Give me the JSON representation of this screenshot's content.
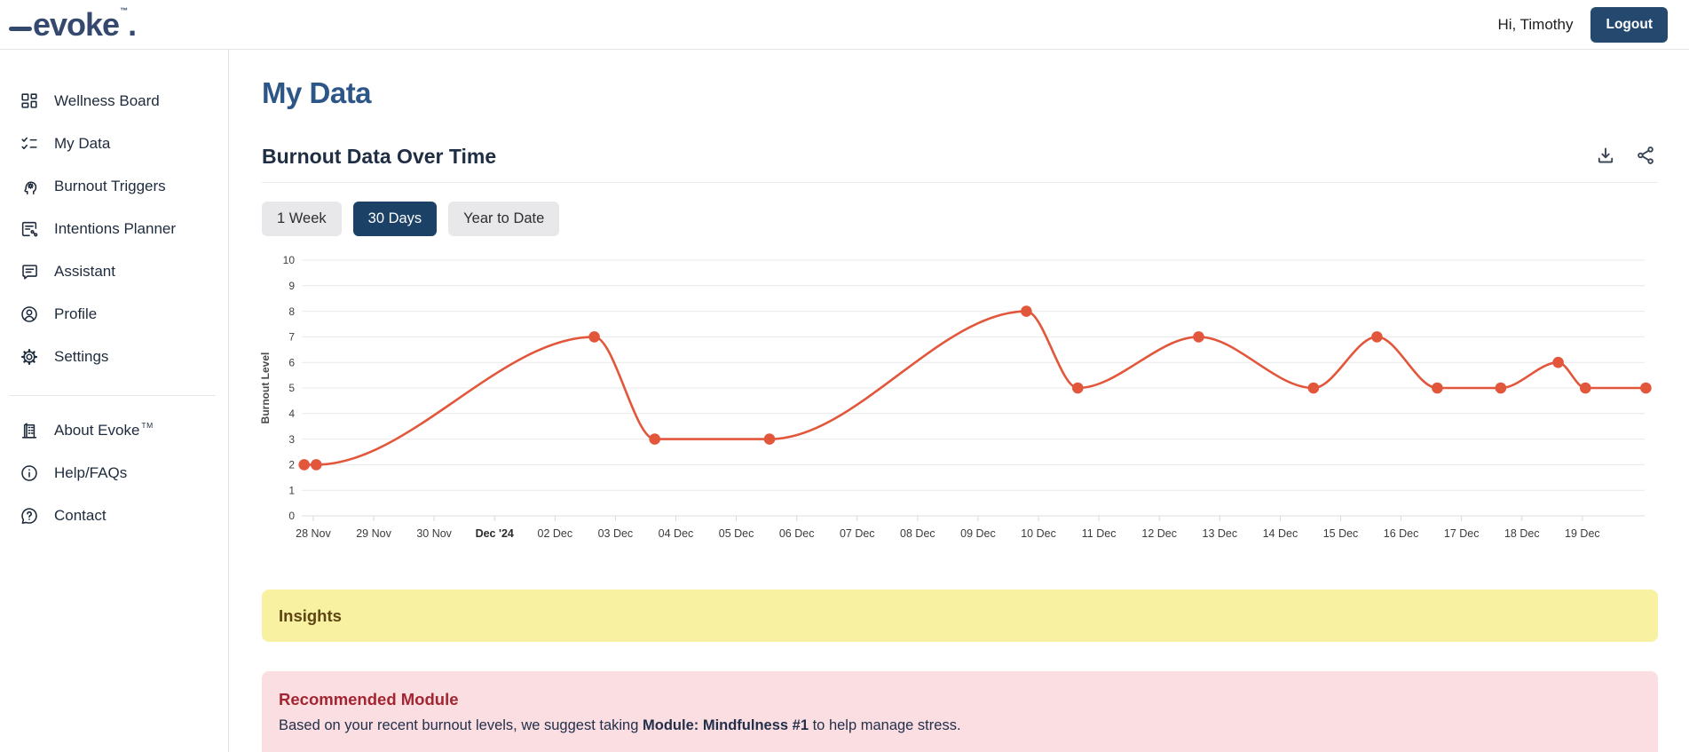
{
  "header": {
    "logo_text": "evoke",
    "logo_tm": "™",
    "logo_period": ".",
    "greeting": "Hi, Timothy",
    "logout_label": "Logout"
  },
  "sidebar": {
    "primary_items": [
      {
        "icon": "wellness-board",
        "label": "Wellness Board"
      },
      {
        "icon": "my-data",
        "label": "My Data"
      },
      {
        "icon": "burnout-triggers",
        "label": "Burnout Triggers"
      },
      {
        "icon": "intentions-planner",
        "label": "Intentions Planner"
      },
      {
        "icon": "assistant",
        "label": "Assistant"
      },
      {
        "icon": "profile",
        "label": "Profile"
      },
      {
        "icon": "settings",
        "label": "Settings"
      }
    ],
    "secondary_items": [
      {
        "icon": "about-evoke",
        "label": "About Evoke",
        "sup": "TM"
      },
      {
        "icon": "help-faqs",
        "label": "Help/FAQs"
      },
      {
        "icon": "contact",
        "label": "Contact"
      }
    ]
  },
  "main": {
    "page_title": "My Data",
    "section_title": "Burnout Data Over Time",
    "range_buttons": [
      {
        "label": "1 Week",
        "active": false
      },
      {
        "label": "30 Days",
        "active": true
      },
      {
        "label": "Year to Date",
        "active": false
      }
    ],
    "insights": {
      "title": "Insights"
    },
    "recommendation": {
      "title": "Recommended Module",
      "text_before": "Based on your recent burnout levels, we suggest taking ",
      "module_name": "Module: Mindfulness #1",
      "text_after": " to help manage stress."
    }
  },
  "chart_data": {
    "type": "line",
    "title": "Burnout Data Over Time",
    "xlabel": "",
    "ylabel": "Burnout Level",
    "ylim": [
      0,
      10
    ],
    "y_ticks": [
      0,
      1,
      2,
      3,
      4,
      5,
      6,
      7,
      8,
      9,
      10
    ],
    "categories": [
      "28 Nov",
      "29 Nov",
      "30 Nov",
      "Dec '24",
      "02 Dec",
      "03 Dec",
      "04 Dec",
      "05 Dec",
      "06 Dec",
      "07 Dec",
      "08 Dec",
      "09 Dec",
      "10 Dec",
      "11 Dec",
      "12 Dec",
      "13 Dec",
      "14 Dec",
      "15 Dec",
      "16 Dec",
      "17 Dec",
      "18 Dec",
      "19 Dec"
    ],
    "bold_category": "Dec '24",
    "x_unit": "days since 28 Nov",
    "x_domain": [
      -0.19,
      22.03
    ],
    "grid": true,
    "legend": false,
    "line_color": "#E2573C",
    "points": [
      {
        "x": -0.15,
        "y": 2
      },
      {
        "x": 0.05,
        "y": 2
      },
      {
        "x": 4.65,
        "y": 7
      },
      {
        "x": 5.65,
        "y": 3
      },
      {
        "x": 7.55,
        "y": 3
      },
      {
        "x": 11.8,
        "y": 8
      },
      {
        "x": 12.65,
        "y": 5
      },
      {
        "x": 14.65,
        "y": 7
      },
      {
        "x": 16.55,
        "y": 5
      },
      {
        "x": 17.6,
        "y": 7
      },
      {
        "x": 18.6,
        "y": 5
      },
      {
        "x": 19.65,
        "y": 5
      },
      {
        "x": 20.6,
        "y": 6
      },
      {
        "x": 21.05,
        "y": 5
      },
      {
        "x": 22.05,
        "y": 5
      }
    ]
  },
  "colors": {
    "logo": "#35496E",
    "accent_navy": "#24486E",
    "heading_blue": "#2C5687",
    "section_heading": "#202E44",
    "button_active_bg": "#1C4166",
    "button_inactive_bg": "#E8E8EA",
    "insights_bg": "#F9F1A2",
    "insights_text": "#5D4514",
    "recommendation_bg": "#FBDEE2",
    "recommendation_title": "#A32531",
    "chart_line": "#E2573C",
    "sidebar_text": "#1E2B3C"
  }
}
